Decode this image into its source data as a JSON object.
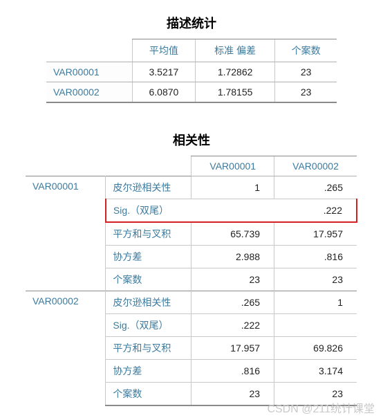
{
  "colors": {
    "header_text": "#3b7a9e",
    "body_text": "#222222",
    "border_dark": "#8a8a8a",
    "border_light": "#c8c8c8",
    "highlight": "#d42020",
    "background": "#ffffff",
    "watermark": "#c9c9c9"
  },
  "typography": {
    "title_fontsize": 18,
    "title_weight": "bold",
    "cell_fontsize": 14,
    "font_family": "Arial / Microsoft YaHei"
  },
  "descriptive": {
    "title": "描述统计",
    "columns": [
      "平均值",
      "标准 偏差",
      "个案数"
    ],
    "rows": [
      {
        "label": "VAR00001",
        "mean": "3.5217",
        "sd": "1.72862",
        "n": "23"
      },
      {
        "label": "VAR00002",
        "mean": "6.0870",
        "sd": "1.78155",
        "n": "23"
      }
    ],
    "column_align": [
      "left",
      "center",
      "center",
      "center"
    ]
  },
  "correlation": {
    "title": "相关性",
    "col_headers": [
      "VAR00001",
      "VAR00002"
    ],
    "stat_labels": {
      "pearson": "皮尔逊相关性",
      "sig": "Sig.（双尾）",
      "sscp": "平方和与叉积",
      "cov": "协方差",
      "n": "个案数"
    },
    "groups": [
      {
        "label": "VAR00001",
        "stats": [
          {
            "key": "pearson",
            "v1": "1",
            "v2": ".265"
          },
          {
            "key": "sig",
            "v1": "",
            "v2": ".222",
            "highlight": true
          },
          {
            "key": "sscp",
            "v1": "65.739",
            "v2": "17.957"
          },
          {
            "key": "cov",
            "v1": "2.988",
            "v2": ".816"
          },
          {
            "key": "n",
            "v1": "23",
            "v2": "23"
          }
        ]
      },
      {
        "label": "VAR00002",
        "stats": [
          {
            "key": "pearson",
            "v1": ".265",
            "v2": "1"
          },
          {
            "key": "sig",
            "v1": ".222",
            "v2": ""
          },
          {
            "key": "sscp",
            "v1": "17.957",
            "v2": "69.826"
          },
          {
            "key": "cov",
            "v1": ".816",
            "v2": "3.174"
          },
          {
            "key": "n",
            "v1": "23",
            "v2": "23"
          }
        ]
      }
    ],
    "highlight_row": {
      "group": 0,
      "stat_key": "sig"
    }
  },
  "watermark": "CSDN @211统计课堂"
}
